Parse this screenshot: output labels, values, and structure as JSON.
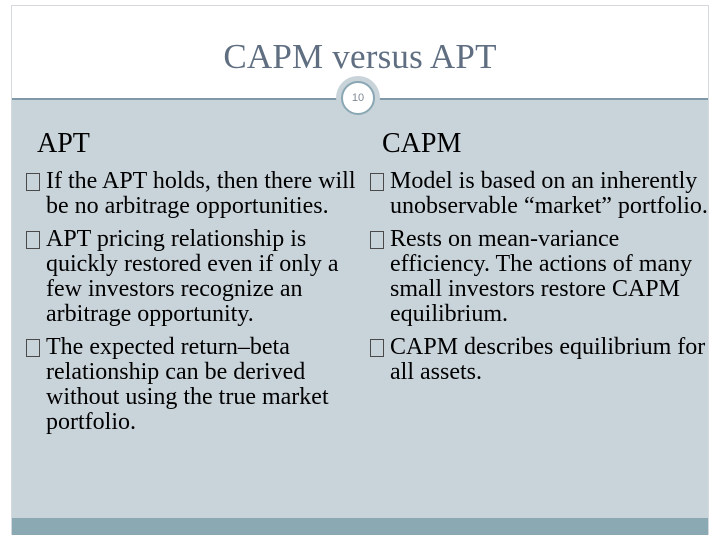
{
  "slide": {
    "title": "CAPM versus APT",
    "page_number": "10"
  },
  "apt": {
    "heading": "APT",
    "points": [
      "If the APT holds, then there will be no arbitrage opportunities.",
      "APT pricing relationship is quickly restored even if only a few investors recognize an arbitrage opportunity.",
      "The expected return–beta relationship can be derived without using the true market portfolio."
    ]
  },
  "capm": {
    "heading": "CAPM",
    "points": [
      "Model is based on an inherently unobservable “market” portfolio.",
      "Rests on mean-variance efficiency. The actions of many small investors restore CAPM equilibrium.",
      "CAPM describes equilibrium for all assets."
    ]
  },
  "colors": {
    "title": "#5f6e80",
    "content_background": "#c9d3da",
    "divider": "#7f99a8",
    "footer_bar": "#8ba9b3"
  }
}
